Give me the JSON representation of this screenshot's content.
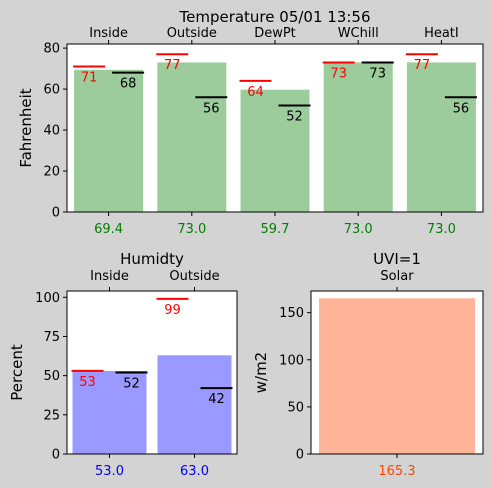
{
  "chart_data": [
    {
      "type": "bar",
      "title": "Temperature 05/01 13:56",
      "ylabel": "Fahrenheit",
      "xlabel": "",
      "categories": [
        "Inside",
        "Outside",
        "DewPt",
        "WChill",
        "HeatI"
      ],
      "values": [
        69.4,
        73.0,
        59.7,
        73.0,
        73.0
      ],
      "value_labels": [
        "69.4",
        "73.0",
        "59.7",
        "73.0",
        "73.0"
      ],
      "high_markers": [
        71,
        77,
        64,
        73,
        77
      ],
      "low_markers": [
        68,
        56,
        52,
        73,
        56
      ],
      "ylim": [
        0,
        82
      ],
      "yticks": [
        0,
        20,
        40,
        60,
        80
      ],
      "bar_color": "#9ccc9c",
      "value_label_color": "#008000",
      "high_color": "#ff0000",
      "low_color": "#000000"
    },
    {
      "type": "bar",
      "title": "Humidty",
      "ylabel": "Percent",
      "xlabel": "",
      "categories": [
        "Inside",
        "Outside"
      ],
      "values": [
        53.0,
        63.0
      ],
      "value_labels": [
        "53.0",
        "63.0"
      ],
      "high_markers": [
        53,
        99
      ],
      "low_markers": [
        52,
        42
      ],
      "ylim": [
        0,
        104
      ],
      "yticks": [
        0,
        25,
        50,
        75,
        100
      ],
      "bar_color": "#9999ff",
      "value_label_color": "#0000ff",
      "high_color": "#ff0000",
      "low_color": "#000000"
    },
    {
      "type": "bar",
      "title": "UVI=1",
      "ylabel": "w/m2",
      "xlabel": "",
      "categories": [
        "Solar"
      ],
      "values": [
        165.3
      ],
      "value_labels": [
        "165.3"
      ],
      "high_markers": [],
      "low_markers": [],
      "ylim": [
        0,
        173
      ],
      "yticks": [
        0,
        50,
        100,
        150
      ],
      "bar_color": "#ffb399",
      "value_label_color": "#ff4500"
    }
  ]
}
